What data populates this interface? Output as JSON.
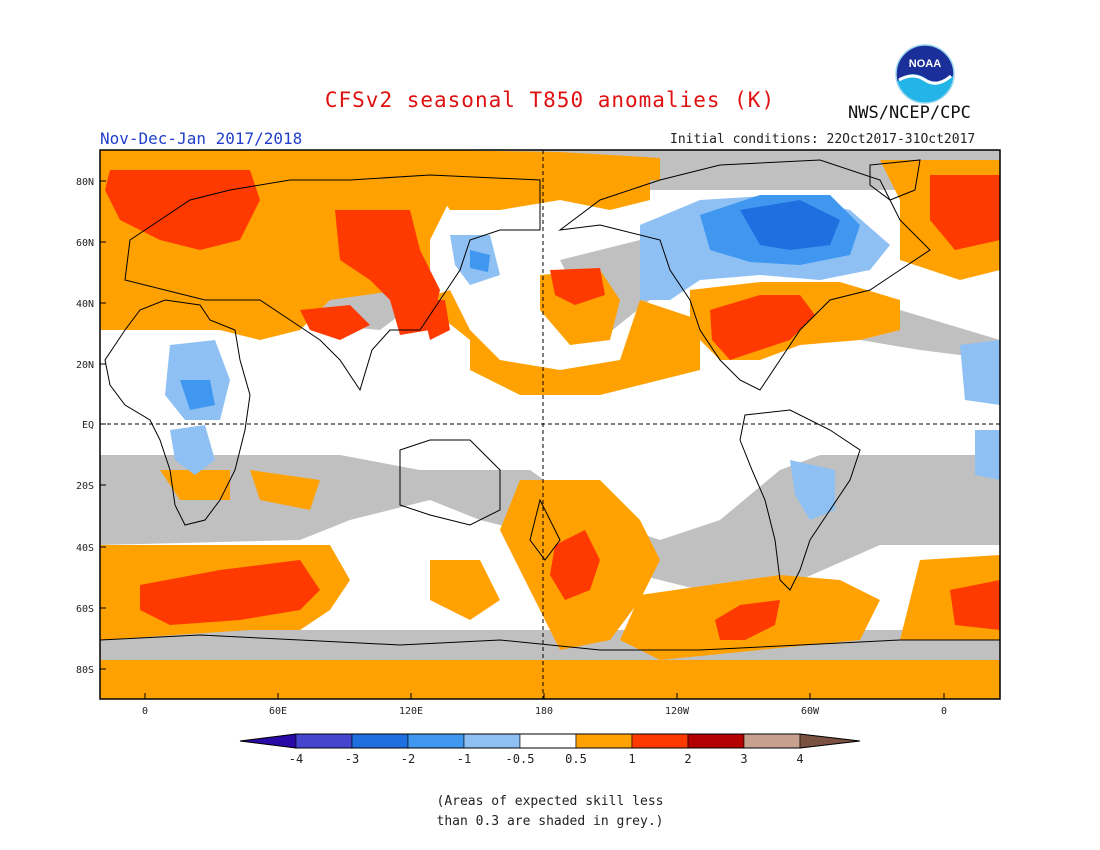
{
  "header": {
    "title": "CFSv2 seasonal T850 anomalies (K)",
    "org": "NWS/NCEP/CPC",
    "season": "Nov-Dec-Jan 2017/2018",
    "initial_conditions": "Initial conditions: 22Oct2017-31Oct2017",
    "logo_text": "NOAA"
  },
  "map": {
    "lat_ticks": [
      "80N",
      "60N",
      "40N",
      "20N",
      "EQ",
      "20S",
      "40S",
      "60S",
      "80S"
    ],
    "lon_ticks": [
      "0",
      "60E",
      "120E",
      "180",
      "120W",
      "60W",
      "0"
    ],
    "background_color": "#ffffff",
    "skill_mask_color": "#c0c0c0"
  },
  "colorbar": {
    "labels": [
      "-4",
      "-3",
      "-2",
      "-1",
      "-0.5",
      "0.5",
      "1",
      "2",
      "3",
      "4"
    ],
    "colors": [
      "#2a0aa6",
      "#4545d0",
      "#1f6fe0",
      "#3f97f0",
      "#8ec0f3",
      "#ffffff",
      "#ffa100",
      "#ff3a00",
      "#b30000",
      "#c8a090",
      "#7a5040"
    ]
  },
  "note": {
    "line1": "(Areas of expected skill less",
    "line2": "than 0.3 are shaded in grey.)"
  }
}
